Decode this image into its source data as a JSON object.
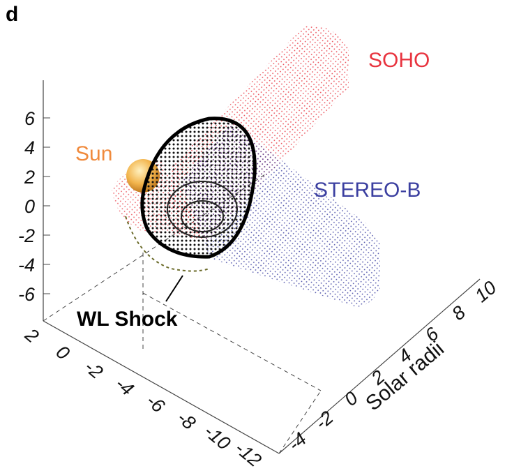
{
  "panel_label": "d",
  "labels": {
    "soho": "SOHO",
    "stereo": "STEREO-B",
    "sun": "Sun",
    "shock": "WL Shock",
    "y_axis": "Solar radii"
  },
  "axes": {
    "z_ticks": [
      6,
      4,
      2,
      0,
      -2,
      -4,
      -6
    ],
    "x_ticks": [
      2,
      0,
      -2,
      -4,
      -6,
      -8,
      -10,
      -12
    ],
    "y_ticks": [
      -4,
      -2,
      0,
      2,
      4,
      6,
      8,
      10
    ]
  }
}
